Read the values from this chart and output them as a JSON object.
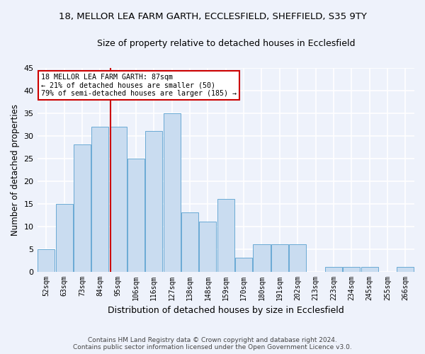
{
  "title_line1": "18, MELLOR LEA FARM GARTH, ECCLESFIELD, SHEFFIELD, S35 9TY",
  "title_line2": "Size of property relative to detached houses in Ecclesfield",
  "xlabel": "Distribution of detached houses by size in Ecclesfield",
  "ylabel": "Number of detached properties",
  "bins": [
    "52sqm",
    "63sqm",
    "73sqm",
    "84sqm",
    "95sqm",
    "106sqm",
    "116sqm",
    "127sqm",
    "138sqm",
    "148sqm",
    "159sqm",
    "170sqm",
    "180sqm",
    "191sqm",
    "202sqm",
    "213sqm",
    "223sqm",
    "234sqm",
    "245sqm",
    "255sqm",
    "266sqm"
  ],
  "values": [
    5,
    15,
    28,
    32,
    32,
    25,
    31,
    35,
    13,
    11,
    16,
    3,
    6,
    6,
    6,
    0,
    1,
    1,
    1,
    0,
    1
  ],
  "bar_color": "#c9dcf0",
  "bar_edge_color": "#6aaad4",
  "red_line_color": "#cc0000",
  "annotation_text_line1": "18 MELLOR LEA FARM GARTH: 87sqm",
  "annotation_text_line2": "← 21% of detached houses are smaller (50)",
  "annotation_text_line3": "79% of semi-detached houses are larger (185) →",
  "annotation_box_color": "#ffffff",
  "annotation_box_edge": "#cc0000",
  "ylim": [
    0,
    45
  ],
  "yticks": [
    0,
    5,
    10,
    15,
    20,
    25,
    30,
    35,
    40,
    45
  ],
  "footer_line1": "Contains HM Land Registry data © Crown copyright and database right 2024.",
  "footer_line2": "Contains public sector information licensed under the Open Government Licence v3.0.",
  "background_color": "#eef2fb",
  "grid_color": "#ffffff"
}
